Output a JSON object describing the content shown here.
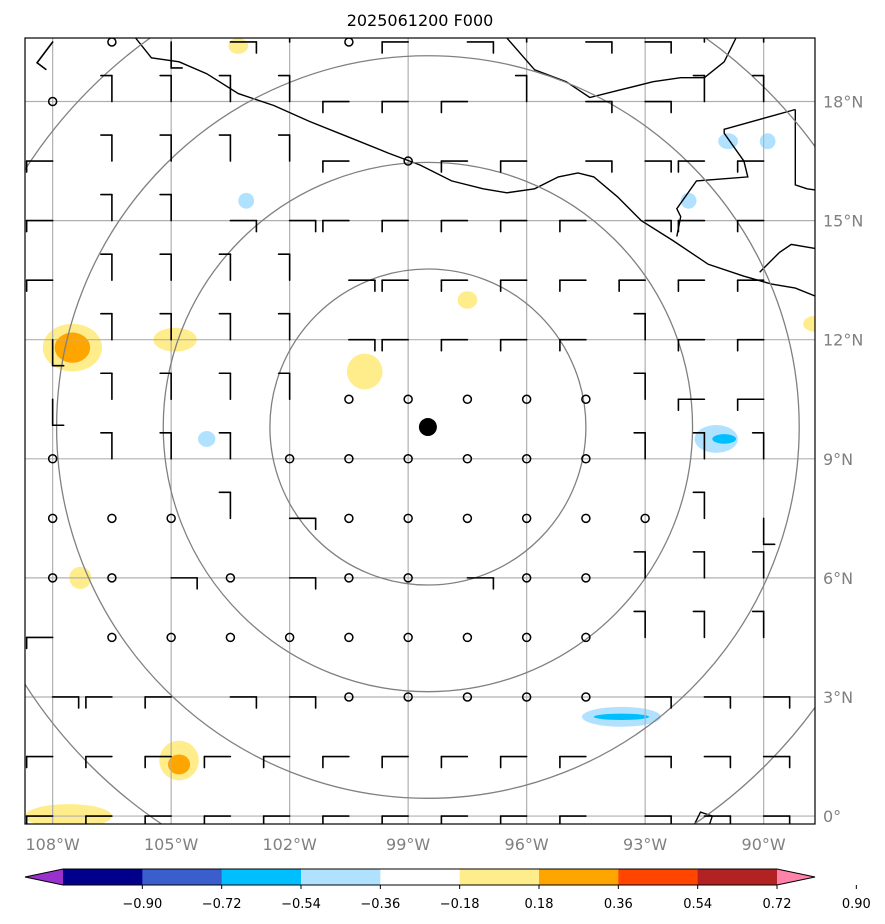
{
  "title": "2025061200 F000",
  "map": {
    "lon_range": [
      -108.7,
      -88.7
    ],
    "lat_range": [
      -0.2,
      19.6
    ],
    "center": {
      "lon": -98.5,
      "lat": 9.8
    },
    "range_rings_deg": [
      4,
      6.7,
      9.4,
      12.1
    ],
    "lon_ticks": [
      {
        "value": -108,
        "label": "108°W"
      },
      {
        "value": -105,
        "label": "105°W"
      },
      {
        "value": -102,
        "label": "102°W"
      },
      {
        "value": -99,
        "label": "99°W"
      },
      {
        "value": -96,
        "label": "96°W"
      },
      {
        "value": -93,
        "label": "93°W"
      },
      {
        "value": -90,
        "label": "90°W"
      }
    ],
    "lat_ticks": [
      {
        "value": 0,
        "label": "0°"
      },
      {
        "value": 3,
        "label": "3°N"
      },
      {
        "value": 6,
        "label": "6°N"
      },
      {
        "value": 9,
        "label": "9°N"
      },
      {
        "value": 12,
        "label": "12°N"
      },
      {
        "value": 15,
        "label": "15°N"
      },
      {
        "value": 18,
        "label": "18°N"
      }
    ],
    "gridline_color": "#b0b0b0",
    "ring_color": "#808080"
  },
  "colorbar": {
    "colors": [
      "#9932cc",
      "#00008b",
      "#3a5fcd",
      "#00bfff",
      "#b0e2ff",
      "#ffffff",
      "#ffec8b",
      "#ffa500",
      "#ff4500",
      "#b22222",
      "#ff82ab"
    ],
    "tick_labels": [
      "−0.90",
      "−0.72",
      "−0.54",
      "−0.36",
      "−0.18",
      "0.18",
      "0.36",
      "0.54",
      "0.72",
      "0.90"
    ]
  },
  "anomalies": [
    {
      "lon": -107.5,
      "lat": 11.8,
      "rx": 0.75,
      "ry": 0.6,
      "color": "#ffec8b"
    },
    {
      "lon": -107.5,
      "lat": 11.8,
      "rx": 0.45,
      "ry": 0.38,
      "color": "#ffa500"
    },
    {
      "lon": -104.9,
      "lat": 12.0,
      "rx": 0.55,
      "ry": 0.3,
      "color": "#ffec8b"
    },
    {
      "lon": -100.1,
      "lat": 11.2,
      "rx": 0.45,
      "ry": 0.45,
      "color": "#ffec8b"
    },
    {
      "lon": -97.5,
      "lat": 13.0,
      "rx": 0.25,
      "ry": 0.22,
      "color": "#ffec8b"
    },
    {
      "lon": -103.3,
      "lat": 19.4,
      "rx": 0.25,
      "ry": 0.2,
      "color": "#ffec8b"
    },
    {
      "lon": -107.3,
      "lat": 6.0,
      "rx": 0.28,
      "ry": 0.28,
      "color": "#ffec8b"
    },
    {
      "lon": -104.8,
      "lat": 1.4,
      "rx": 0.5,
      "ry": 0.5,
      "color": "#ffec8b"
    },
    {
      "lon": -104.8,
      "lat": 1.3,
      "rx": 0.28,
      "ry": 0.25,
      "color": "#ffa500"
    },
    {
      "lon": -107.6,
      "lat": 0.0,
      "rx": 1.1,
      "ry": 0.3,
      "color": "#ffec8b"
    },
    {
      "lon": -88.7,
      "lat": 12.4,
      "rx": 0.3,
      "ry": 0.2,
      "color": "#ffec8b"
    },
    {
      "lon": -104.1,
      "lat": 9.5,
      "rx": 0.22,
      "ry": 0.2,
      "color": "#b0e2ff"
    },
    {
      "lon": -103.1,
      "lat": 15.5,
      "rx": 0.2,
      "ry": 0.2,
      "color": "#b0e2ff"
    },
    {
      "lon": -91.9,
      "lat": 15.5,
      "rx": 0.2,
      "ry": 0.2,
      "color": "#b0e2ff"
    },
    {
      "lon": -90.9,
      "lat": 17.0,
      "rx": 0.25,
      "ry": 0.2,
      "color": "#b0e2ff"
    },
    {
      "lon": -89.9,
      "lat": 17.0,
      "rx": 0.2,
      "ry": 0.2,
      "color": "#b0e2ff"
    },
    {
      "lon": -91.2,
      "lat": 9.5,
      "rx": 0.55,
      "ry": 0.35,
      "color": "#b0e2ff"
    },
    {
      "lon": -91.0,
      "lat": 9.5,
      "rx": 0.3,
      "ry": 0.12,
      "color": "#00bfff"
    },
    {
      "lon": -93.6,
      "lat": 2.5,
      "rx": 1.0,
      "ry": 0.25,
      "color": "#b0e2ff"
    },
    {
      "lon": -93.6,
      "lat": 2.5,
      "rx": 0.7,
      "ry": 0.08,
      "color": "#00bfff"
    }
  ],
  "wind_grid": {
    "lons": [
      -108,
      -106.5,
      -105,
      -103.5,
      -102,
      -100.5,
      -99,
      -97.5,
      -96,
      -94.5,
      -93,
      -91.5,
      -90
    ],
    "lats": [
      19.5,
      18,
      16.5,
      15,
      13.5,
      12,
      10.5,
      9,
      7.5,
      6,
      4.5,
      3,
      1.5,
      0
    ]
  },
  "winds": [
    [
      "L",
      "C",
      "S",
      "E",
      "N",
      "C",
      "W",
      "E",
      "N",
      "E",
      "E",
      "N",
      "N"
    ],
    [
      "C",
      "N",
      "N",
      "N",
      "N",
      "W",
      "W",
      "W",
      "N",
      "E",
      "E",
      "N",
      "N"
    ],
    [
      "W",
      "N",
      "N",
      "N",
      "N",
      "W",
      "C",
      "W",
      "W",
      "E",
      "E",
      "W",
      "W"
    ],
    [
      "W",
      "N",
      "N",
      "E",
      "E",
      "W",
      "W",
      "W",
      "W",
      "W",
      "E",
      "W",
      "W"
    ],
    [
      "W",
      "N",
      "N",
      "N",
      "N",
      "E",
      "W",
      "W",
      "W",
      "W",
      "W",
      "W",
      "W"
    ],
    [
      "S",
      "N",
      "N",
      "N",
      "N",
      "E",
      "W",
      "W",
      "W",
      "W",
      "N",
      "W",
      "W"
    ],
    [
      "S",
      "N",
      "N",
      "N",
      "N",
      "C",
      "C",
      "C",
      "C",
      "C",
      "N",
      "W",
      "W"
    ],
    [
      "C",
      "N",
      "N",
      "N",
      "C",
      "C",
      "C",
      "C",
      "C",
      "C",
      "N",
      "N",
      "N"
    ],
    [
      "C",
      "C",
      "C",
      "N",
      "E",
      "C",
      "C",
      "C",
      "C",
      "C",
      "C",
      "N",
      "S"
    ],
    [
      "C",
      "C",
      "E",
      "C",
      "E",
      "C",
      "C",
      "E",
      "C",
      "C",
      "N",
      "N",
      "N"
    ],
    [
      "W",
      "C",
      "C",
      "C",
      "C",
      "C",
      "C",
      "C",
      "C",
      "C",
      "N",
      "N",
      "N"
    ],
    [
      "E",
      "W",
      "W",
      "E",
      "E",
      "C",
      "C",
      "C",
      "C",
      "C",
      "E",
      "E",
      "E"
    ],
    [
      "W",
      "W",
      "W",
      "W",
      "W",
      "W",
      "W",
      "W",
      "W",
      "W",
      "E",
      "E",
      "E"
    ],
    [
      "W",
      "W",
      "W",
      "W",
      "W",
      "W",
      "W",
      "W",
      "W",
      "W",
      "E",
      "E",
      "E"
    ]
  ],
  "coastlines": {
    "pacific_coast": [
      [
        -105.9,
        19.6
      ],
      [
        -105.5,
        19.1
      ],
      [
        -104.8,
        19.0
      ],
      [
        -104.1,
        18.7
      ],
      [
        -103.3,
        18.2
      ],
      [
        -102.4,
        17.9
      ],
      [
        -101.5,
        17.5
      ],
      [
        -100.5,
        17.1
      ],
      [
        -99.5,
        16.7
      ],
      [
        -98.7,
        16.4
      ],
      [
        -97.9,
        16.0
      ],
      [
        -97.1,
        15.8
      ],
      [
        -96.5,
        15.7
      ],
      [
        -95.8,
        15.8
      ],
      [
        -95.2,
        16.1
      ],
      [
        -94.7,
        16.2
      ],
      [
        -94.3,
        16.1
      ],
      [
        -93.7,
        15.6
      ],
      [
        -93.1,
        15.0
      ],
      [
        -92.3,
        14.5
      ],
      [
        -91.4,
        13.9
      ],
      [
        -90.5,
        13.6
      ],
      [
        -89.8,
        13.4
      ],
      [
        -89.2,
        13.3
      ],
      [
        -88.7,
        13.1
      ]
    ],
    "gulf_coast": [
      [
        -96.5,
        19.6
      ],
      [
        -95.8,
        18.8
      ],
      [
        -95.0,
        18.5
      ],
      [
        -94.4,
        18.1
      ],
      [
        -93.6,
        18.3
      ],
      [
        -92.8,
        18.5
      ],
      [
        -92.1,
        18.6
      ],
      [
        -91.5,
        18.6
      ],
      [
        -91.0,
        19.0
      ],
      [
        -90.7,
        19.6
      ]
    ],
    "border_mx_gt": [
      [
        -92.2,
        14.6
      ],
      [
        -92.1,
        15.1
      ],
      [
        -92.2,
        15.3
      ],
      [
        -91.7,
        16.0
      ],
      [
        -90.4,
        16.1
      ],
      [
        -90.5,
        16.5
      ],
      [
        -91.0,
        17.2
      ],
      [
        -91.0,
        17.3
      ],
      [
        -89.2,
        17.8
      ]
    ],
    "belize_coast": [
      [
        -88.7,
        17.3
      ],
      [
        -88.3,
        17.5
      ],
      [
        -88.3,
        18.5
      ],
      [
        -88.2,
        19.0
      ]
    ],
    "belize_border": [
      [
        -89.2,
        17.8
      ],
      [
        -89.2,
        15.9
      ],
      [
        -88.9,
        15.8
      ]
    ],
    "honduras_coast": [
      [
        -88.9,
        15.8
      ],
      [
        -88.2,
        15.7
      ],
      [
        -87.6,
        15.9
      ]
    ],
    "es_border": [
      [
        -90.1,
        13.7
      ],
      [
        -89.6,
        14.2
      ],
      [
        -89.3,
        14.4
      ],
      [
        -88.7,
        14.3
      ]
    ],
    "isla_coiba": [
      [
        -91.8,
        -0.3
      ],
      [
        -91.6,
        0.1
      ],
      [
        -91.3,
        0.0
      ],
      [
        -91.4,
        -0.3
      ]
    ]
  }
}
